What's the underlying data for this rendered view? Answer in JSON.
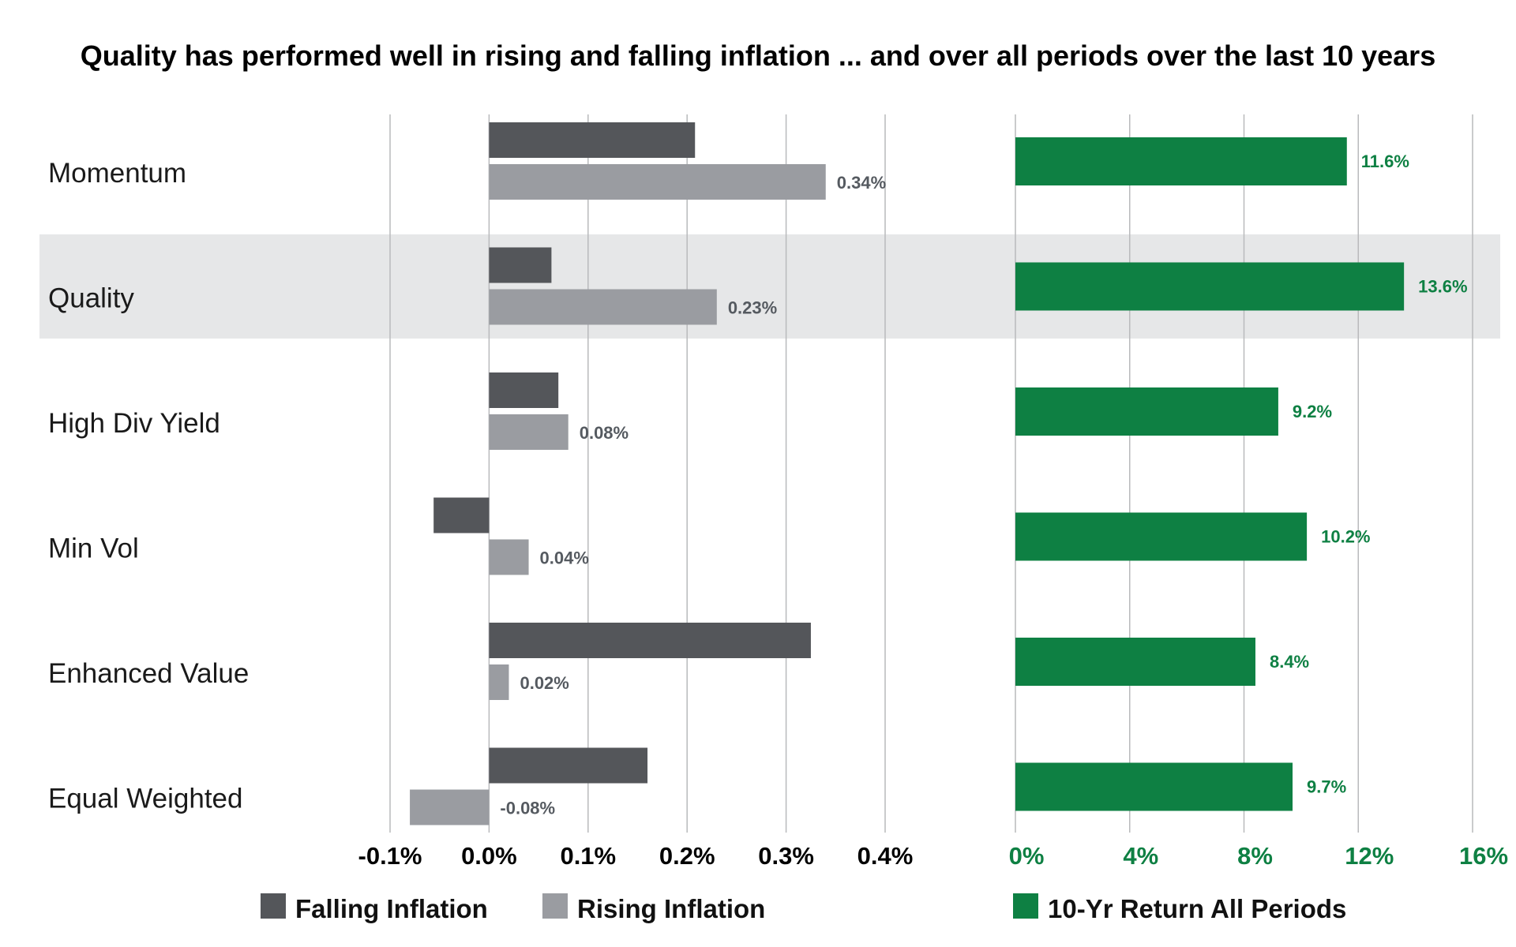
{
  "chart_data": [
    {
      "type": "bar",
      "orientation": "horizontal",
      "title": "Quality has performed well in rising and falling inflation ... and over all periods over the last 10 years",
      "categories": [
        "Momentum",
        "Quality",
        "High Div Yield",
        "Min Vol",
        "Enhanced Value",
        "Equal Weighted"
      ],
      "highlighted_category": "Quality",
      "series": [
        {
          "name": "Falling Inflation",
          "color": "#54565a",
          "values": [
            0.208,
            0.063,
            0.07,
            -0.056,
            0.325,
            0.16
          ]
        },
        {
          "name": "Rising Inflation",
          "color": "#9a9ca1",
          "values": [
            0.34,
            0.23,
            0.08,
            0.04,
            0.02,
            -0.08
          ],
          "data_labels": [
            "0.34%",
            "0.23%",
            "0.08%",
            "0.04%",
            "0.02%",
            "-0.08%"
          ]
        }
      ],
      "xlim": [
        -0.1,
        0.4
      ],
      "xticks": [
        "-0.1%",
        "0.0%",
        "0.1%",
        "0.2%",
        "0.3%",
        "0.4%"
      ],
      "grid": true,
      "legend": "bottom"
    },
    {
      "type": "bar",
      "orientation": "horizontal",
      "categories": [
        "Momentum",
        "Quality",
        "High Div Yield",
        "Min Vol",
        "Enhanced Value",
        "Equal Weighted"
      ],
      "series": [
        {
          "name": "10-Yr Return All Periods",
          "color": "#0e8043",
          "values": [
            11.6,
            13.6,
            9.2,
            10.2,
            8.4,
            9.7
          ],
          "data_labels": [
            "11.6%",
            "13.6%",
            "9.2%",
            "10.2%",
            "8.4%",
            "9.7%"
          ]
        }
      ],
      "xlim": [
        0,
        16
      ],
      "xticks": [
        "0%",
        "4%",
        "8%",
        "12%",
        "16%"
      ],
      "tick_color": "#0e8043",
      "grid": true,
      "legend": "bottom"
    }
  ]
}
